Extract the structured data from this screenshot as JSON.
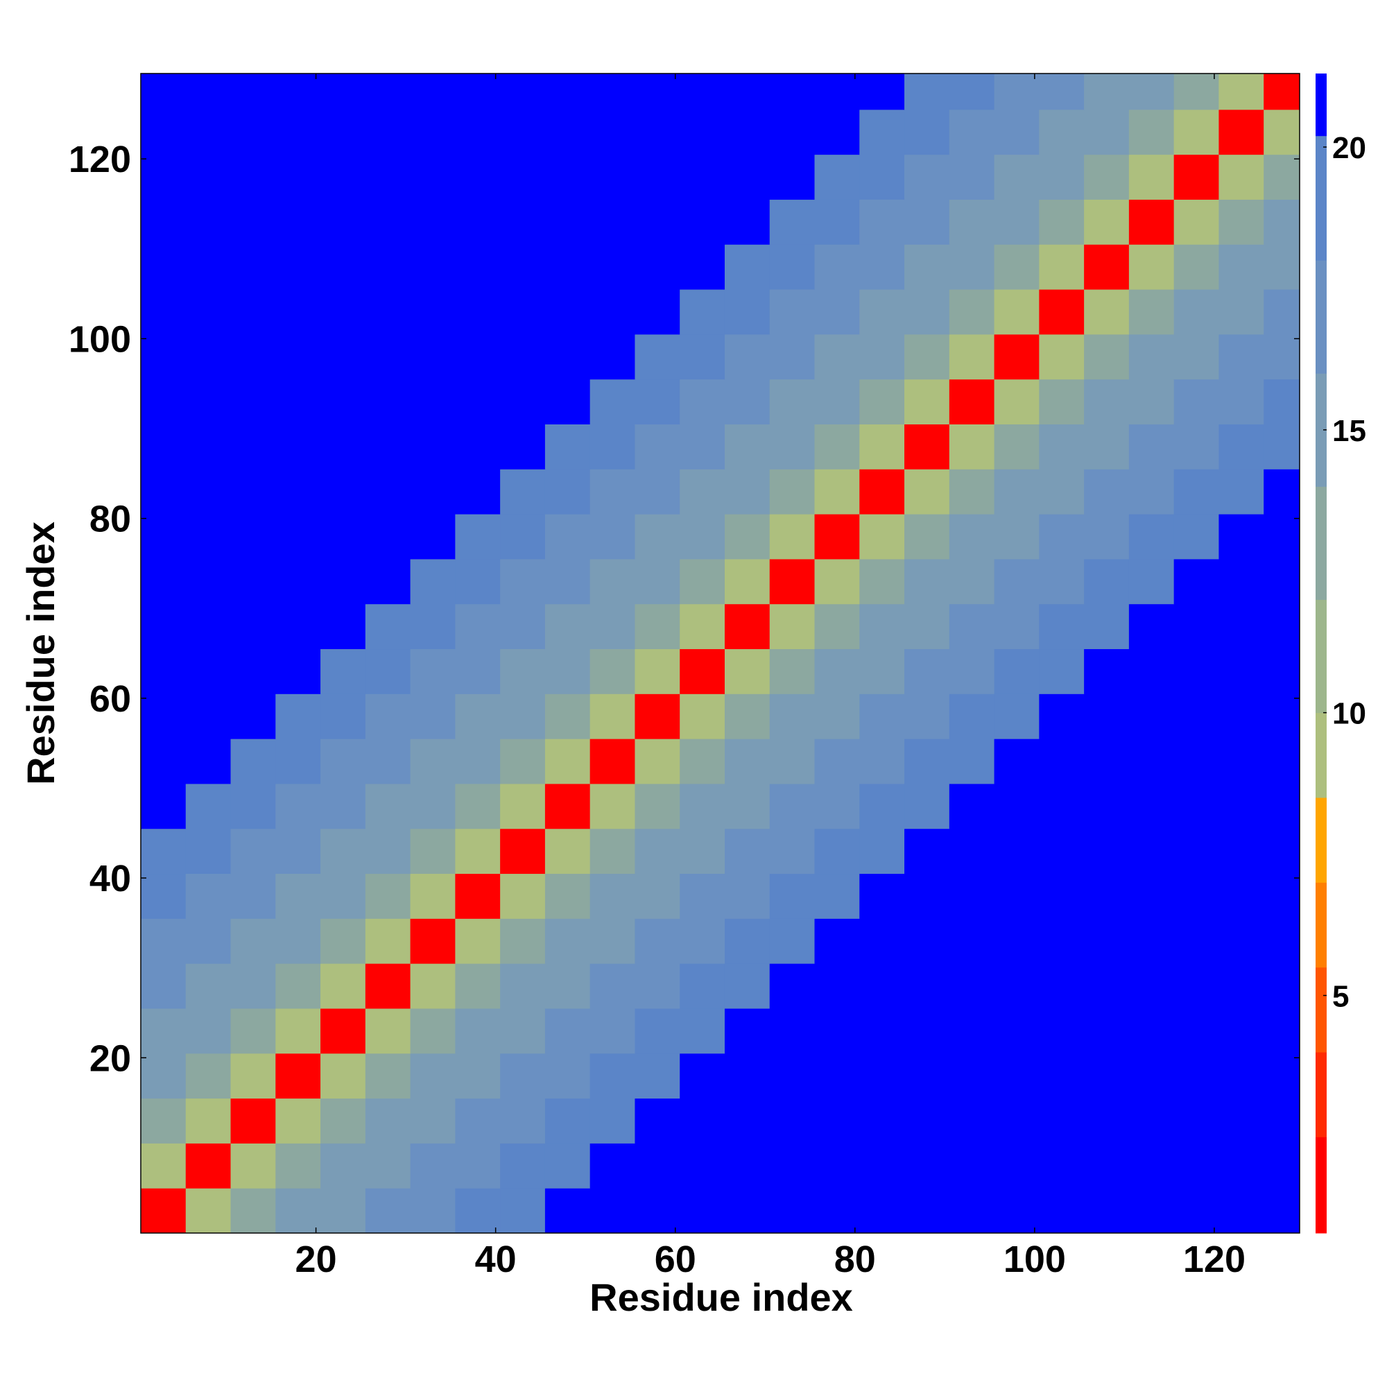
{
  "chart_data": {
    "type": "heatmap",
    "xlabel": "Residue index",
    "ylabel": "Residue index",
    "xbins": [
      0.5,
      5.5,
      10.5,
      15.5,
      20.5,
      25.5,
      30.5,
      35.5,
      40.5,
      45.5,
      50.5,
      55.5,
      60.5,
      65.5,
      70.5,
      75.5,
      80.5,
      85.5,
      90.5,
      95.5,
      100.5,
      105.5,
      110.5,
      115.5,
      120.5,
      125.5,
      129.5
    ],
    "ybins": [
      0.5,
      5.5,
      10.5,
      15.5,
      20.5,
      25.5,
      30.5,
      35.5,
      40.5,
      45.5,
      50.5,
      55.5,
      60.5,
      65.5,
      70.5,
      75.5,
      80.5,
      85.5,
      90.5,
      95.5,
      100.5,
      105.5,
      110.5,
      115.5,
      120.5,
      125.5,
      129.5
    ],
    "values": [
      [
        2,
        9,
        12,
        14,
        15,
        16,
        17,
        18,
        19,
        21,
        21,
        21,
        21,
        21,
        21,
        21,
        21,
        21,
        21,
        21,
        21,
        21,
        21,
        21,
        21,
        21
      ],
      [
        9,
        2,
        9,
        12,
        14,
        15,
        16,
        17,
        18,
        19,
        21,
        21,
        21,
        21,
        21,
        21,
        21,
        21,
        21,
        21,
        21,
        21,
        21,
        21,
        21,
        21
      ],
      [
        12,
        9,
        2,
        9,
        12,
        14,
        15,
        16,
        17,
        18,
        19,
        21,
        21,
        21,
        21,
        21,
        21,
        21,
        21,
        21,
        21,
        21,
        21,
        21,
        21,
        21
      ],
      [
        14,
        12,
        9,
        2,
        9,
        12,
        14,
        15,
        16,
        17,
        18,
        19,
        21,
        21,
        21,
        21,
        21,
        21,
        21,
        21,
        21,
        21,
        21,
        21,
        21,
        21
      ],
      [
        15,
        14,
        12,
        9,
        2,
        9,
        12,
        14,
        15,
        16,
        17,
        18,
        19,
        21,
        21,
        21,
        21,
        21,
        21,
        21,
        21,
        21,
        21,
        21,
        21,
        21
      ],
      [
        16,
        15,
        14,
        12,
        9,
        2,
        9,
        12,
        14,
        15,
        16,
        17,
        18,
        19,
        21,
        21,
        21,
        21,
        21,
        21,
        21,
        21,
        21,
        21,
        21,
        21
      ],
      [
        17,
        16,
        15,
        14,
        12,
        9,
        2,
        9,
        12,
        14,
        15,
        16,
        17,
        18,
        19,
        21,
        21,
        21,
        21,
        21,
        21,
        21,
        21,
        21,
        21,
        21
      ],
      [
        18,
        17,
        16,
        15,
        14,
        12,
        9,
        2,
        9,
        12,
        14,
        15,
        16,
        17,
        18,
        19,
        21,
        21,
        21,
        21,
        21,
        21,
        21,
        21,
        21,
        21
      ],
      [
        19,
        18,
        17,
        16,
        15,
        14,
        12,
        9,
        2,
        9,
        12,
        14,
        15,
        16,
        17,
        18,
        19,
        21,
        21,
        21,
        21,
        21,
        21,
        21,
        21,
        21
      ],
      [
        21,
        19,
        18,
        17,
        16,
        15,
        14,
        12,
        9,
        2,
        9,
        12,
        14,
        15,
        16,
        17,
        18,
        19,
        21,
        21,
        21,
        21,
        21,
        21,
        21,
        21
      ],
      [
        21,
        21,
        19,
        18,
        17,
        16,
        15,
        14,
        12,
        9,
        2,
        9,
        12,
        14,
        15,
        16,
        17,
        18,
        19,
        21,
        21,
        21,
        21,
        21,
        21,
        21
      ],
      [
        21,
        21,
        21,
        19,
        18,
        17,
        16,
        15,
        14,
        12,
        9,
        2,
        9,
        12,
        14,
        15,
        16,
        17,
        18,
        19,
        21,
        21,
        21,
        21,
        21,
        21
      ],
      [
        21,
        21,
        21,
        21,
        19,
        18,
        17,
        16,
        15,
        14,
        12,
        9,
        2,
        9,
        12,
        14,
        15,
        16,
        17,
        18,
        19,
        21,
        21,
        21,
        21,
        21
      ],
      [
        21,
        21,
        21,
        21,
        21,
        19,
        18,
        17,
        16,
        15,
        14,
        12,
        9,
        2,
        9,
        12,
        14,
        15,
        16,
        17,
        18,
        19,
        21,
        21,
        21,
        21
      ],
      [
        21,
        21,
        21,
        21,
        21,
        21,
        19,
        18,
        17,
        16,
        15,
        14,
        12,
        9,
        2,
        9,
        12,
        14,
        15,
        16,
        17,
        18,
        19,
        21,
        21,
        21
      ],
      [
        21,
        21,
        21,
        21,
        21,
        21,
        21,
        19,
        18,
        17,
        16,
        15,
        14,
        12,
        9,
        2,
        9,
        12,
        14,
        15,
        16,
        17,
        18,
        19,
        21,
        21
      ],
      [
        21,
        21,
        21,
        21,
        21,
        21,
        21,
        21,
        19,
        18,
        17,
        16,
        15,
        14,
        12,
        9,
        2,
        9,
        12,
        14,
        15,
        16,
        17,
        18,
        19,
        21
      ],
      [
        21,
        21,
        21,
        21,
        21,
        21,
        21,
        21,
        21,
        19,
        18,
        17,
        16,
        15,
        14,
        12,
        9,
        2,
        9,
        12,
        14,
        15,
        16,
        17,
        18,
        19
      ],
      [
        21,
        21,
        21,
        21,
        21,
        21,
        21,
        21,
        21,
        21,
        19,
        18,
        17,
        16,
        15,
        14,
        12,
        9,
        2,
        9,
        12,
        14,
        15,
        16,
        17,
        18
      ],
      [
        21,
        21,
        21,
        21,
        21,
        21,
        21,
        21,
        21,
        21,
        21,
        19,
        18,
        17,
        16,
        15,
        14,
        12,
        9,
        2,
        9,
        12,
        14,
        15,
        16,
        17
      ],
      [
        21,
        21,
        21,
        21,
        21,
        21,
        21,
        21,
        21,
        21,
        21,
        21,
        19,
        18,
        17,
        16,
        15,
        14,
        12,
        9,
        2,
        9,
        12,
        14,
        15,
        16
      ],
      [
        21,
        21,
        21,
        21,
        21,
        21,
        21,
        21,
        21,
        21,
        21,
        21,
        21,
        19,
        18,
        17,
        16,
        15,
        14,
        12,
        9,
        2,
        9,
        12,
        14,
        15
      ],
      [
        21,
        21,
        21,
        21,
        21,
        21,
        21,
        21,
        21,
        21,
        21,
        21,
        21,
        21,
        19,
        18,
        17,
        16,
        15,
        14,
        12,
        9,
        2,
        9,
        12,
        14
      ],
      [
        21,
        21,
        21,
        21,
        21,
        21,
        21,
        21,
        21,
        21,
        21,
        21,
        21,
        21,
        21,
        19,
        18,
        17,
        16,
        15,
        14,
        12,
        9,
        2,
        9,
        12
      ],
      [
        21,
        21,
        21,
        21,
        21,
        21,
        21,
        21,
        21,
        21,
        21,
        21,
        21,
        21,
        21,
        21,
        19,
        18,
        17,
        16,
        15,
        14,
        12,
        9,
        2,
        9
      ],
      [
        21,
        21,
        21,
        21,
        21,
        21,
        21,
        21,
        21,
        21,
        21,
        21,
        21,
        21,
        21,
        21,
        21,
        19,
        18,
        17,
        16,
        15,
        14,
        12,
        9,
        2
      ]
    ],
    "xlim": [
      0.5,
      129.5
    ],
    "ylim": [
      0.5,
      129.5
    ],
    "xticks": [
      20,
      40,
      60,
      80,
      100,
      120
    ],
    "yticks": [
      20,
      40,
      60,
      80,
      100,
      120
    ],
    "colorbar": {
      "lim": [
        0.8,
        21.3
      ],
      "ticks": [
        5,
        10,
        15,
        20
      ],
      "bounds": [
        0.8,
        2.5,
        4,
        5.5,
        7,
        8.5,
        10,
        12,
        14,
        16,
        18,
        20.2,
        21.3
      ],
      "colors": [
        "#ff0000",
        "#ff2a00",
        "#ff5500",
        "#ff7f00",
        "#ffa500",
        "#adbf7e",
        "#9db68c",
        "#8ca8a0",
        "#7a9cb6",
        "#6a90c2",
        "#5b85c8",
        "#0000ff"
      ]
    }
  }
}
